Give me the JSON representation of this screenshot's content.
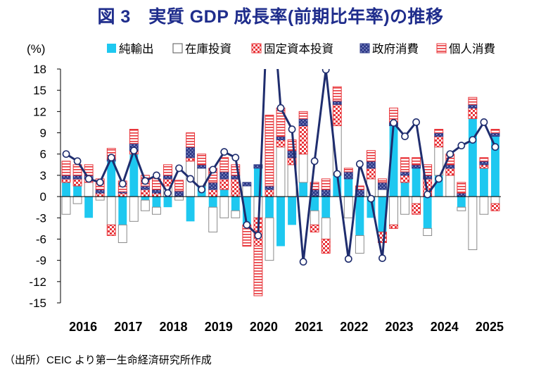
{
  "title": "図 3　実質 GDP 成長率(前期比年率)の推移",
  "unit": "(%)",
  "source": "（出所）CEIC より第一生命経済研究所作成",
  "colors": {
    "net_exports": "#1EC8F0",
    "inventory": "#FFFFFF",
    "fixed_investment": "#E8353A",
    "government": "#2E3A87",
    "consumption": "#E8353A",
    "gdp_line": "#1F2D6E"
  },
  "chart_data": {
    "type": "bar",
    "stacked": true,
    "quarters": [
      "2016Q1",
      "2016Q2",
      "2016Q3",
      "2016Q4",
      "2017Q1",
      "2017Q2",
      "2017Q3",
      "2017Q4",
      "2018Q1",
      "2018Q2",
      "2018Q3",
      "2018Q4",
      "2019Q1",
      "2019Q2",
      "2019Q3",
      "2019Q4",
      "2020Q1",
      "2020Q2",
      "2020Q3",
      "2020Q4",
      "2021Q1",
      "2021Q2",
      "2021Q3",
      "2021Q4",
      "2022Q1",
      "2022Q2",
      "2022Q3",
      "2022Q4",
      "2023Q1",
      "2023Q2",
      "2023Q3",
      "2023Q4",
      "2024Q1",
      "2024Q2",
      "2024Q3",
      "2024Q4",
      "2025Q1",
      "2025Q2",
      "2025Q3"
    ],
    "x_tick_labels": [
      "2016",
      "2017",
      "2018",
      "2019",
      "2020",
      "2021",
      "2022",
      "2023",
      "2024",
      "2025"
    ],
    "y_ticks": [
      "18",
      "15",
      "12",
      "9",
      "6",
      "3",
      "0",
      "-3",
      "-6",
      "-9",
      "-12",
      "-15"
    ],
    "ylim": [
      -15,
      18
    ],
    "legend": [
      "純輸出",
      "在庫投資",
      "固定資本投資",
      "政府消費",
      "個人消費"
    ],
    "legend_position": "top",
    "series": [
      {
        "name": "純輸出",
        "key": "net_exports",
        "pattern": "solid",
        "values": [
          2.0,
          1.5,
          -3.0,
          0.0,
          5.0,
          -4.0,
          6.0,
          -0.5,
          -1.5,
          -1.5,
          0.0,
          -3.5,
          1.5,
          -1.5,
          1.0,
          -2.0,
          -4.0,
          4.0,
          -3.0,
          -7.0,
          -4.0,
          2.0,
          -2.0,
          -3.0,
          3.0,
          2.5,
          -5.5,
          -3.0,
          -5.0,
          10.0,
          2.0,
          4.0,
          -4.5,
          3.0,
          0.0,
          -1.5,
          11.0,
          4.0,
          8.5
        ]
      },
      {
        "name": "在庫投資",
        "key": "inventory",
        "pattern": "white",
        "values": [
          -2.5,
          -1.0,
          2.0,
          -0.5,
          -4.0,
          -2.5,
          -3.5,
          -1.5,
          -1.0,
          1.5,
          -0.5,
          5.0,
          2.5,
          -3.5,
          -3.0,
          -1.0,
          1.5,
          -3.0,
          -6.0,
          7.0,
          4.5,
          4.0,
          -2.0,
          -3.0,
          7.0,
          -3.0,
          -2.5,
          2.5,
          1.0,
          -4.0,
          -2.5,
          -1.0,
          -1.0,
          4.0,
          3.0,
          -0.5,
          -7.5,
          -2.5,
          -1.0
        ]
      },
      {
        "name": "固定資本投資",
        "key": "fixed_investment",
        "pattern": "checker",
        "values": [
          0.5,
          1.0,
          0.5,
          0.5,
          -1.5,
          0.5,
          0.5,
          1.0,
          0.5,
          1.0,
          0.0,
          0.5,
          0.0,
          1.0,
          1.5,
          2.5,
          0.0,
          -4.0,
          1.0,
          1.0,
          1.0,
          4.0,
          -1.0,
          -2.0,
          3.0,
          0.0,
          0.0,
          1.5,
          -1.5,
          -0.5,
          1.0,
          -1.5,
          2.5,
          1.5,
          1.0,
          0.0,
          1.5,
          0.5,
          -1.0
        ]
      },
      {
        "name": "政府消費",
        "key": "government",
        "pattern": "hatch",
        "values": [
          0.5,
          0.5,
          0.5,
          0.5,
          0.3,
          0.2,
          1.0,
          0.5,
          0.5,
          0.5,
          0.8,
          1.5,
          0.5,
          1.0,
          1.0,
          0.5,
          0.5,
          0.5,
          0.5,
          0.5,
          1.0,
          1.0,
          1.0,
          1.0,
          0.5,
          1.0,
          1.0,
          1.0,
          1.0,
          0.5,
          0.5,
          0.5,
          0.5,
          0.5,
          0.5,
          0.5,
          0.5,
          0.5,
          0.5
        ]
      },
      {
        "name": "個人消費",
        "key": "consumption",
        "pattern": "hline",
        "values": [
          2.0,
          1.5,
          1.5,
          1.5,
          1.5,
          1.5,
          2.0,
          1.5,
          1.5,
          1.5,
          1.5,
          2.0,
          1.5,
          2.0,
          2.0,
          1.5,
          -3.0,
          -7.0,
          10.0,
          4.0,
          1.5,
          1.0,
          1.0,
          1.5,
          2.0,
          0.5,
          0.5,
          1.5,
          0.5,
          2.0,
          2.0,
          1.0,
          1.5,
          0.5,
          1.5,
          1.5,
          1.0,
          0.5,
          0.5
        ]
      }
    ],
    "gdp": {
      "name": "実質GDP成長率",
      "values": [
        6.0,
        5.0,
        2.5,
        2.0,
        5.5,
        1.8,
        6.5,
        2.2,
        3.0,
        0.5,
        4.0,
        2.5,
        1.0,
        3.8,
        6.3,
        5.5,
        -4.0,
        -5.5,
        33.0,
        12.5,
        9.5,
        -9.2,
        5.0,
        17.9,
        3.2,
        -8.8,
        4.6,
        -0.3,
        -8.7,
        10.4,
        8.5,
        10.5,
        0.3,
        2.5,
        6.0,
        7.2,
        8.0,
        10.5,
        7.0
      ]
    }
  }
}
